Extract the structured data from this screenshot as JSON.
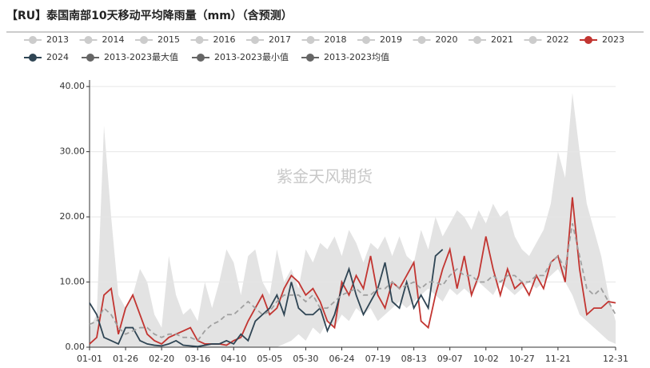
{
  "chart_data": {
    "type": "line",
    "title": "【RU】泰国南部10天移动平均降雨量（mm）（含预测）",
    "watermark": "紫金天风期货",
    "categories": [
      "01-01",
      null,
      null,
      null,
      null,
      "01-26",
      null,
      null,
      null,
      null,
      "02-20",
      null,
      null,
      null,
      null,
      "03-16",
      null,
      null,
      null,
      null,
      "04-10",
      null,
      null,
      null,
      null,
      "05-05",
      null,
      null,
      null,
      null,
      "05-30",
      null,
      null,
      null,
      null,
      "06-24",
      null,
      null,
      null,
      null,
      "07-19",
      null,
      null,
      null,
      null,
      "08-13",
      null,
      null,
      null,
      null,
      "09-07",
      null,
      null,
      null,
      null,
      "10-02",
      null,
      null,
      null,
      null,
      "10-27",
      null,
      null,
      null,
      null,
      "11-21",
      null,
      null,
      null,
      null,
      null,
      null,
      null,
      "12-31"
    ],
    "ylim": [
      0,
      41
    ],
    "yticks": [
      {
        "value": 0,
        "label": "0.00"
      },
      {
        "value": 10,
        "label": "10.00"
      },
      {
        "value": 20,
        "label": "20.00"
      },
      {
        "value": 30,
        "label": "30.00"
      },
      {
        "value": 40,
        "label": "40.00"
      }
    ],
    "grid": true,
    "series": [
      {
        "name": "2013",
        "color": "#cccccc",
        "visible": false
      },
      {
        "name": "2014",
        "color": "#cccccc",
        "visible": false
      },
      {
        "name": "2015",
        "color": "#cccccc",
        "visible": false
      },
      {
        "name": "2016",
        "color": "#cccccc",
        "visible": false
      },
      {
        "name": "2017",
        "color": "#cccccc",
        "visible": false
      },
      {
        "name": "2018",
        "color": "#cccccc",
        "visible": false
      },
      {
        "name": "2019",
        "color": "#cccccc",
        "visible": false
      },
      {
        "name": "2020",
        "color": "#cccccc",
        "visible": false
      },
      {
        "name": "2021",
        "color": "#cccccc",
        "visible": false
      },
      {
        "name": "2022",
        "color": "#cccccc",
        "visible": false
      },
      {
        "name": "2023",
        "color": "#c23531",
        "values": [
          0.5,
          1.5,
          8,
          9,
          2,
          6,
          8,
          5,
          2,
          1,
          0.5,
          1.5,
          2,
          2.5,
          3,
          1,
          0.5,
          0.5,
          0.5,
          0.3,
          1,
          1.5,
          4,
          6,
          8,
          5,
          6,
          9,
          11,
          10,
          8,
          9,
          7,
          4,
          3,
          10,
          8,
          11,
          9,
          14,
          8,
          6,
          10,
          9,
          11,
          13,
          4,
          3,
          8,
          12,
          15,
          9,
          14,
          8,
          11,
          17,
          12,
          8,
          12,
          9,
          10,
          8,
          11,
          9,
          13,
          14,
          10,
          23,
          12,
          5,
          6,
          6,
          7,
          6.8
        ]
      },
      {
        "name": "2024",
        "color": "#2f4554",
        "values": [
          6.8,
          5,
          1.5,
          1,
          0.5,
          3,
          3,
          1,
          0.5,
          0.3,
          0.2,
          0.5,
          1,
          0.3,
          0.2,
          0.1,
          0.3,
          0.5,
          0.5,
          1,
          0.5,
          2,
          1,
          4,
          5,
          6,
          8,
          5,
          10,
          6,
          5,
          5,
          6,
          2.5,
          5,
          9,
          12,
          8,
          5,
          7,
          9,
          13,
          7,
          6,
          10,
          6,
          8,
          6,
          14,
          15,
          null,
          null,
          null,
          null,
          null,
          null,
          null,
          null,
          null,
          null,
          null,
          null,
          null,
          null,
          null,
          null,
          null,
          null,
          null,
          null,
          null,
          null,
          null,
          null
        ]
      },
      {
        "name": "2013-2023最大值",
        "color": "#666666",
        "area": true,
        "area_color": "#e3e3e3",
        "values": [
          3,
          5,
          34,
          20,
          8,
          6,
          8,
          12,
          10,
          5,
          3,
          14,
          8,
          5,
          6,
          4,
          10,
          6,
          10,
          15,
          13,
          8,
          14,
          15,
          10,
          8,
          15,
          10,
          12,
          9,
          15,
          13,
          16,
          15,
          17,
          14,
          18,
          16,
          13,
          16,
          15,
          17,
          14,
          17,
          14,
          13,
          18,
          15,
          20,
          17,
          19,
          21,
          20,
          18,
          21,
          19,
          22,
          20,
          21,
          17,
          15,
          14,
          16,
          18,
          22,
          30,
          26,
          39,
          30,
          22,
          18,
          14,
          8,
          4
        ]
      },
      {
        "name": "2013-2023最小值",
        "color": "#666666",
        "area": true,
        "area_color": "#ffffff",
        "values": [
          0,
          0,
          0,
          0,
          0,
          0,
          0,
          0,
          0,
          0,
          0,
          0,
          0,
          0,
          0,
          0,
          0,
          0,
          0,
          0,
          0,
          0,
          0,
          0,
          0,
          0,
          0,
          0.5,
          1,
          2,
          1,
          3,
          2,
          4,
          3,
          5,
          4,
          6,
          5,
          6,
          4,
          5,
          6,
          7,
          6,
          7,
          8,
          9,
          8,
          7,
          9,
          8,
          9,
          8,
          10,
          9,
          8,
          10,
          9,
          8,
          9,
          10,
          9,
          10,
          11,
          12,
          10,
          8,
          5,
          4,
          3,
          2,
          1,
          0.5
        ]
      },
      {
        "name": "2013-2023均值",
        "color": "#666666",
        "line_color": "#a0a0a0",
        "dash": true,
        "values": [
          3.5,
          4,
          6,
          5,
          3,
          2,
          2.5,
          3,
          3,
          2,
          1.5,
          2,
          2,
          1.5,
          1.5,
          1,
          2.5,
          3.5,
          4,
          5,
          5,
          6,
          7,
          6,
          5,
          5.5,
          7,
          8,
          8,
          8,
          7,
          8,
          6,
          6,
          7,
          8,
          8.5,
          9,
          8,
          8,
          9,
          9,
          10,
          9,
          9.5,
          10,
          9,
          10,
          10,
          9.5,
          11,
          12,
          11,
          11,
          10,
          10,
          11,
          10,
          11,
          11,
          10,
          10,
          11,
          11,
          13,
          14,
          12,
          19,
          14,
          9,
          8,
          9,
          7,
          5
        ]
      }
    ]
  }
}
